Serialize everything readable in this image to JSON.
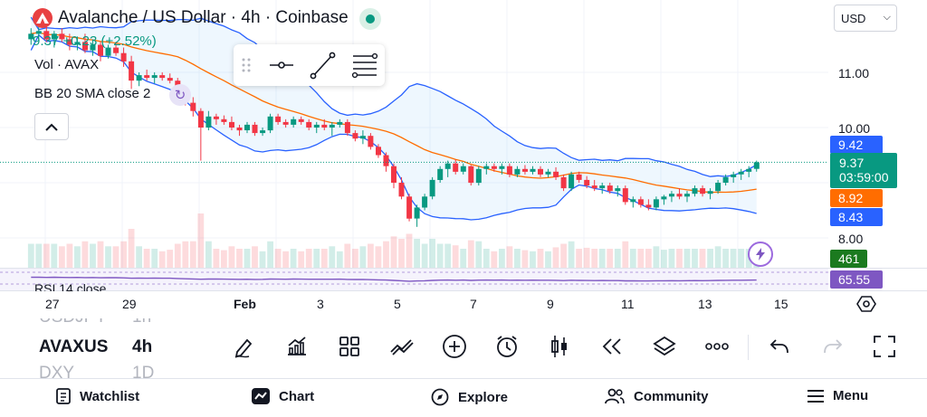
{
  "header": {
    "title": "Avalanche / US Dollar · 4h · Coinbase",
    "price_change": "9.37  +0.23 (+2.52%)",
    "volume_label": "Vol · AVAX",
    "bb_label": "BB 20 SMA close 2",
    "currency": "USD"
  },
  "price_axis": {
    "ticks": [
      "11.00",
      "10.00",
      "8.00"
    ]
  },
  "price_tags": {
    "bb_upper": "9.42",
    "last_price": "9.37",
    "countdown": "03:59:00",
    "bb_basis": "8.92",
    "bb_lower": "8.43",
    "volume": "461",
    "rsi": "65.55"
  },
  "colors": {
    "up": "#089981",
    "down": "#f23645",
    "bb_band": "#2962ff",
    "bb_basis": "#ff6d00",
    "rsi": "#7e57c2",
    "bb_tag": "#2962ff",
    "basis_tag": "#ff6d00",
    "vol_tag": "#1b7a1f",
    "rsi_tag": "#7e57c2"
  },
  "rsi_label": "RSI 14 close",
  "time_axis": [
    "27",
    "29",
    "Feb",
    "3",
    "5",
    "7",
    "9",
    "11",
    "13",
    "15"
  ],
  "symbol_picker": {
    "prev_symbol": "USDJPY",
    "prev_interval": "1h",
    "symbol": "AVAXUS",
    "interval": "4h",
    "next_symbol": "DXY",
    "next_interval": "1D"
  },
  "tools": [
    "pencil-icon",
    "indicators-icon",
    "layout-grid-icon",
    "compare-icon",
    "add-icon",
    "alert-clock-icon",
    "candle-type-icon",
    "replay-icon",
    "layers-icon",
    "more-icon",
    "undo-icon",
    "redo-icon",
    "fullscreen-icon"
  ],
  "nav": {
    "watchlist": "Watchlist",
    "chart": "Chart",
    "explore": "Explore",
    "community": "Community",
    "menu": "Menu"
  },
  "chart_data": {
    "type": "candlestick",
    "symbol": "Avalanche / US Dollar",
    "interval": "4h",
    "ylim": [
      7.5,
      12.0
    ],
    "candles": [
      [
        11.6,
        11.8,
        11.5,
        11.7
      ],
      [
        11.7,
        11.9,
        11.6,
        11.75
      ],
      [
        11.75,
        11.85,
        11.55,
        11.6
      ],
      [
        11.6,
        11.75,
        11.45,
        11.7
      ],
      [
        11.7,
        11.8,
        11.55,
        11.6
      ],
      [
        11.6,
        11.7,
        11.4,
        11.5
      ],
      [
        11.5,
        11.65,
        11.4,
        11.55
      ],
      [
        11.55,
        11.7,
        11.35,
        11.4
      ],
      [
        11.4,
        11.6,
        11.3,
        11.5
      ],
      [
        11.5,
        11.55,
        11.2,
        11.3
      ],
      [
        11.3,
        11.5,
        11.25,
        11.45
      ],
      [
        11.45,
        11.55,
        11.3,
        11.35
      ],
      [
        11.35,
        11.45,
        11.1,
        11.2
      ],
      [
        11.2,
        11.3,
        10.7,
        10.85
      ],
      [
        10.85,
        11.0,
        10.75,
        10.95
      ],
      [
        10.95,
        11.05,
        10.85,
        10.9
      ],
      [
        10.9,
        11.0,
        10.8,
        10.95
      ],
      [
        10.95,
        11.0,
        10.85,
        10.9
      ],
      [
        10.9,
        10.98,
        10.8,
        10.85
      ],
      [
        10.85,
        10.9,
        10.6,
        10.65
      ],
      [
        10.65,
        10.75,
        10.4,
        10.45
      ],
      [
        10.45,
        10.55,
        10.2,
        10.3
      ],
      [
        10.3,
        10.35,
        9.4,
        10.0
      ],
      [
        10.0,
        10.3,
        9.95,
        10.2
      ],
      [
        10.2,
        10.25,
        10.05,
        10.15
      ],
      [
        10.15,
        10.22,
        10.05,
        10.1
      ],
      [
        10.1,
        10.2,
        9.95,
        10.0
      ],
      [
        10.0,
        10.05,
        9.85,
        9.95
      ],
      [
        9.95,
        10.1,
        9.9,
        10.05
      ],
      [
        10.05,
        10.1,
        9.85,
        9.9
      ],
      [
        9.9,
        10.0,
        9.85,
        9.95
      ],
      [
        9.95,
        10.25,
        9.9,
        10.2
      ],
      [
        10.2,
        10.25,
        10.05,
        10.1
      ],
      [
        10.1,
        10.15,
        10.0,
        10.05
      ],
      [
        10.05,
        10.2,
        10.0,
        10.15
      ],
      [
        10.15,
        10.2,
        10.05,
        10.1
      ],
      [
        10.1,
        10.15,
        9.95,
        10.0
      ],
      [
        10.0,
        10.1,
        9.9,
        10.05
      ],
      [
        10.05,
        10.15,
        9.95,
        10.0
      ],
      [
        10.0,
        10.1,
        9.85,
        10.05
      ],
      [
        10.05,
        10.15,
        10.0,
        10.1
      ],
      [
        10.1,
        10.15,
        9.85,
        9.9
      ],
      [
        9.9,
        9.95,
        9.75,
        9.8
      ],
      [
        9.8,
        9.95,
        9.7,
        9.85
      ],
      [
        9.85,
        9.9,
        9.6,
        9.65
      ],
      [
        9.65,
        9.7,
        9.45,
        9.5
      ],
      [
        9.5,
        9.55,
        9.2,
        9.3
      ],
      [
        9.3,
        9.35,
        8.9,
        9.0
      ],
      [
        9.0,
        9.1,
        8.7,
        8.75
      ],
      [
        8.75,
        8.8,
        8.3,
        8.35
      ],
      [
        8.35,
        8.6,
        8.2,
        8.55
      ],
      [
        8.55,
        8.8,
        8.5,
        8.75
      ],
      [
        8.75,
        9.1,
        8.7,
        9.05
      ],
      [
        9.05,
        9.3,
        9.0,
        9.25
      ],
      [
        9.25,
        9.4,
        9.1,
        9.35
      ],
      [
        9.35,
        9.42,
        9.15,
        9.2
      ],
      [
        9.2,
        9.35,
        9.15,
        9.3
      ],
      [
        9.3,
        9.32,
        8.95,
        9.0
      ],
      [
        9.0,
        9.3,
        8.95,
        9.25
      ],
      [
        9.25,
        9.35,
        9.15,
        9.3
      ],
      [
        9.3,
        9.35,
        9.2,
        9.25
      ],
      [
        9.25,
        9.35,
        9.15,
        9.3
      ],
      [
        9.3,
        9.35,
        9.1,
        9.15
      ],
      [
        9.15,
        9.3,
        9.1,
        9.25
      ],
      [
        9.25,
        9.32,
        9.15,
        9.2
      ],
      [
        9.2,
        9.3,
        9.15,
        9.25
      ],
      [
        9.25,
        9.3,
        9.1,
        9.15
      ],
      [
        9.15,
        9.25,
        9.1,
        9.2
      ],
      [
        9.2,
        9.28,
        9.05,
        9.1
      ],
      [
        9.1,
        9.15,
        8.85,
        8.9
      ],
      [
        8.9,
        9.2,
        8.85,
        9.15
      ],
      [
        9.15,
        9.2,
        9.0,
        9.05
      ],
      [
        9.05,
        9.12,
        8.9,
        8.95
      ],
      [
        8.95,
        9.05,
        8.85,
        8.9
      ],
      [
        8.9,
        9.0,
        8.8,
        8.95
      ],
      [
        8.95,
        9.0,
        8.8,
        8.85
      ],
      [
        8.85,
        8.95,
        8.75,
        8.9
      ],
      [
        8.9,
        8.95,
        8.6,
        8.65
      ],
      [
        8.65,
        8.75,
        8.55,
        8.7
      ],
      [
        8.7,
        8.75,
        8.55,
        8.6
      ],
      [
        8.6,
        8.7,
        8.5,
        8.55
      ],
      [
        8.55,
        8.75,
        8.5,
        8.7
      ],
      [
        8.7,
        8.78,
        8.6,
        8.75
      ],
      [
        8.75,
        8.85,
        8.65,
        8.8
      ],
      [
        8.8,
        8.9,
        8.7,
        8.75
      ],
      [
        8.75,
        8.85,
        8.65,
        8.8
      ],
      [
        8.8,
        8.95,
        8.75,
        8.9
      ],
      [
        8.9,
        8.95,
        8.75,
        8.8
      ],
      [
        8.8,
        8.9,
        8.7,
        8.85
      ],
      [
        8.85,
        9.05,
        8.8,
        9.0
      ],
      [
        9.0,
        9.15,
        8.95,
        9.1
      ],
      [
        9.1,
        9.2,
        9.0,
        9.15
      ],
      [
        9.15,
        9.25,
        9.05,
        9.2
      ],
      [
        9.2,
        9.3,
        9.1,
        9.25
      ],
      [
        9.25,
        9.4,
        9.2,
        9.37
      ]
    ]
  }
}
